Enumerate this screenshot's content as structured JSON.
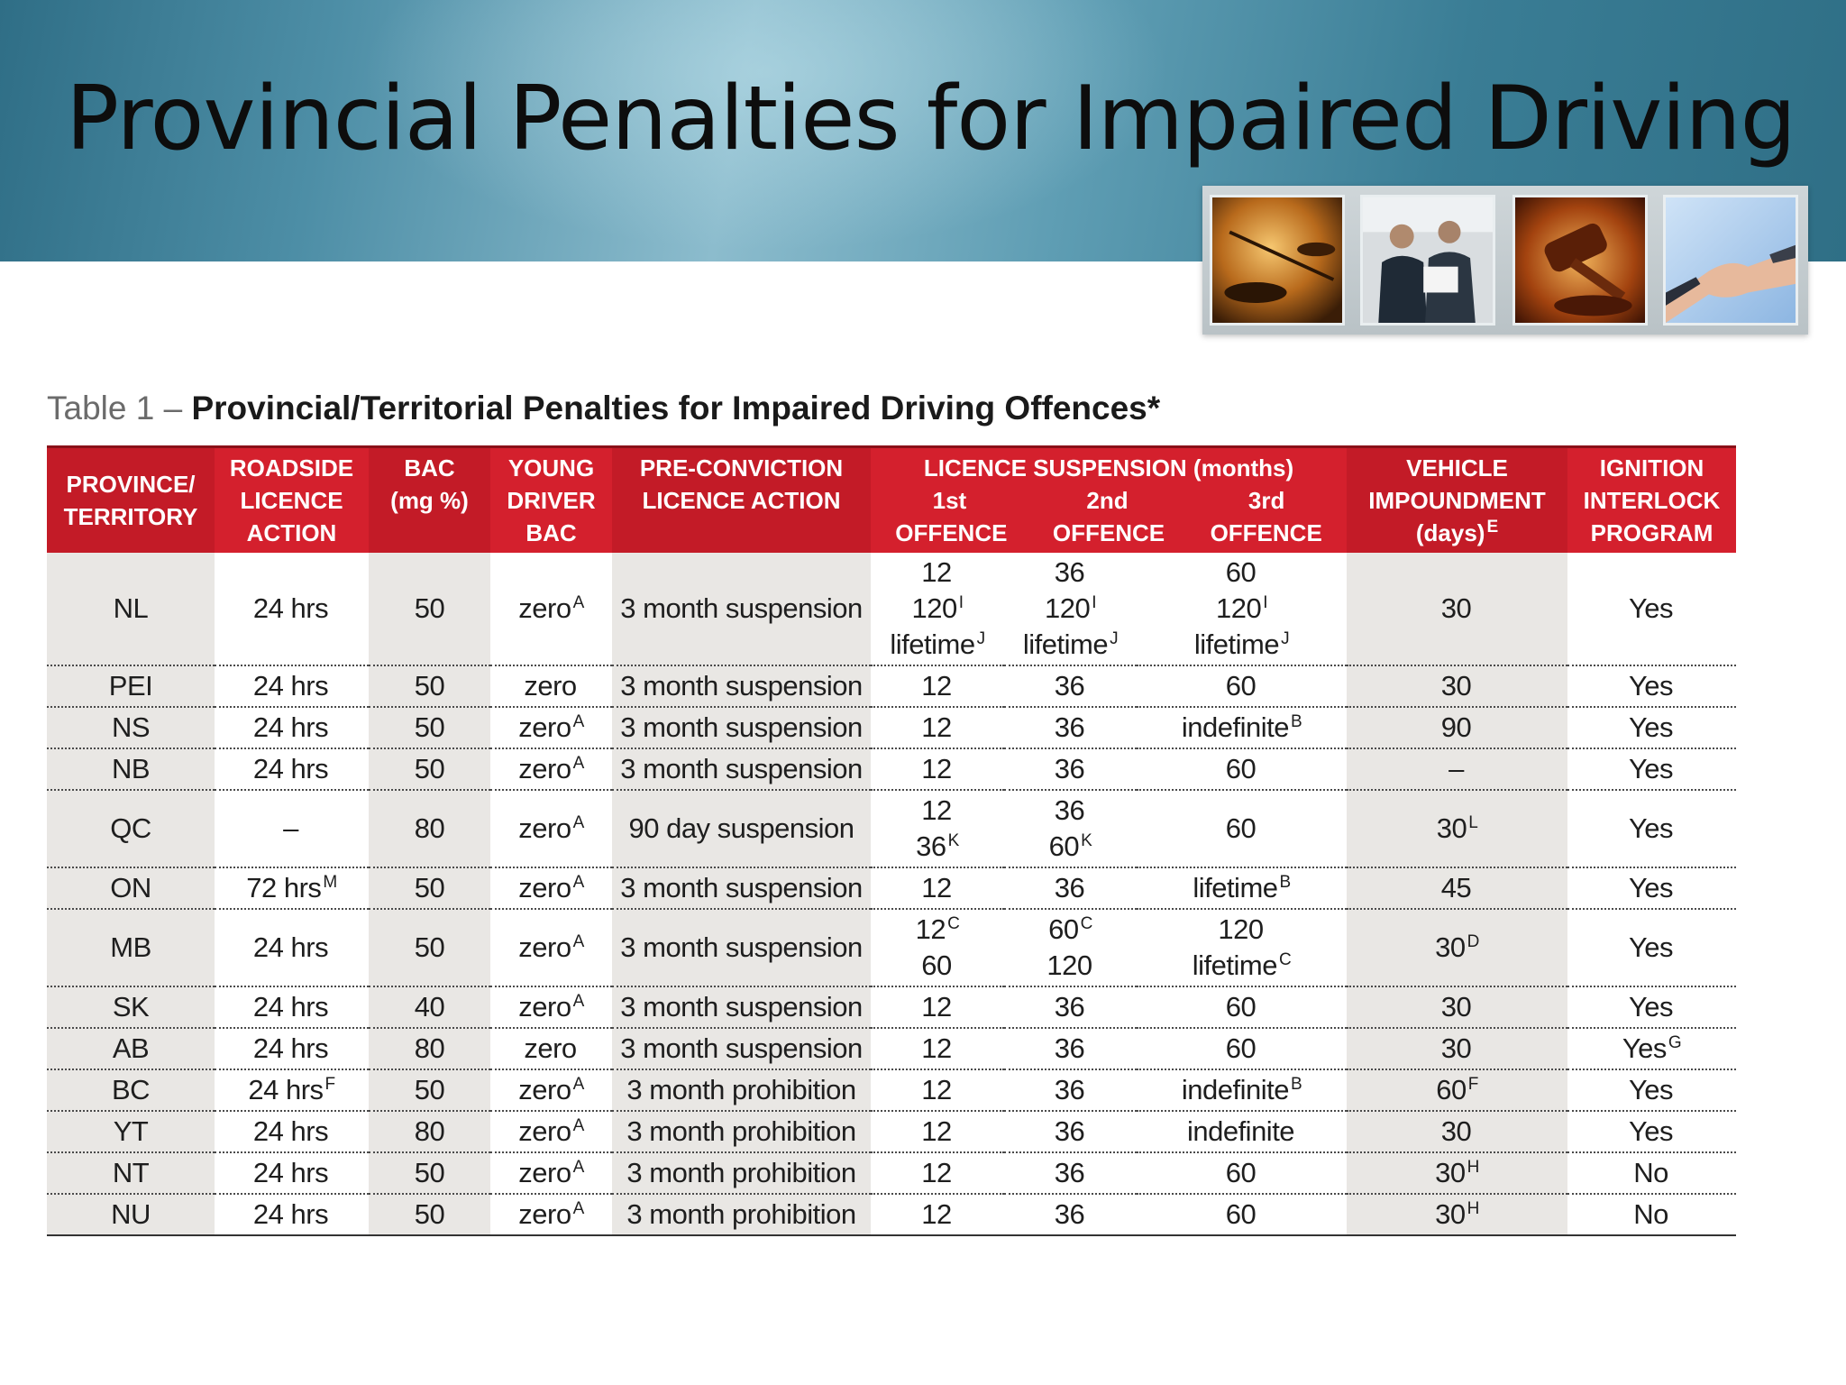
{
  "slide": {
    "title": "Provincial Penalties for Impaired Driving"
  },
  "photos": [
    {
      "icon": "scales-of-justice-image"
    },
    {
      "icon": "business-people-image"
    },
    {
      "icon": "gavel-image"
    },
    {
      "icon": "handshake-image"
    }
  ],
  "caption": {
    "prefix": "Table 1",
    "dash": "–",
    "main": "Provincial/Territorial Penalties for Impaired Driving Offences*"
  },
  "headers": {
    "province": [
      "PROVINCE/",
      "TERRITORY"
    ],
    "roadside": [
      "ROADSIDE",
      "LICENCE",
      "ACTION"
    ],
    "bac": [
      "BAC",
      "(mg %)"
    ],
    "young": [
      "YOUNG",
      "DRIVER",
      "BAC"
    ],
    "preconviction": [
      "PRE-CONVICTION",
      "LICENCE ACTION"
    ],
    "suspension_group": "LICENCE SUSPENSION (months)",
    "offence_numbers": [
      "1st",
      "2nd",
      "3rd"
    ],
    "offence_labels": [
      "OFFENCE",
      "OFFENCE",
      "OFFENCE"
    ],
    "vehicle": [
      "VEHICLE",
      "IMPOUNDMENT",
      "(days)"
    ],
    "vehicle_sup": "E",
    "ignition": [
      "IGNITION",
      "INTERLOCK",
      "PROGRAM"
    ]
  },
  "rows": [
    {
      "province": "NL",
      "roadside": {
        "t": "24 hrs",
        "s": ""
      },
      "bac": "50",
      "young": {
        "t": "zero",
        "s": "A"
      },
      "preconviction": "3 month suspension",
      "first": [
        {
          "t": "12",
          "s": ""
        },
        {
          "t": "120",
          "s": "I"
        },
        {
          "t": "lifetime",
          "s": "J"
        }
      ],
      "second": [
        {
          "t": "36",
          "s": ""
        },
        {
          "t": "120",
          "s": "I"
        },
        {
          "t": "lifetime",
          "s": "J"
        }
      ],
      "third": [
        {
          "t": "60",
          "s": ""
        },
        {
          "t": "120",
          "s": "I"
        },
        {
          "t": "lifetime",
          "s": "J"
        }
      ],
      "vehicle": {
        "t": "30",
        "s": ""
      },
      "ignition": {
        "t": "Yes",
        "s": ""
      }
    },
    {
      "province": "PEI",
      "roadside": {
        "t": "24 hrs",
        "s": ""
      },
      "bac": "50",
      "young": {
        "t": "zero",
        "s": ""
      },
      "preconviction": "3 month suspension",
      "first": [
        {
          "t": "12",
          "s": ""
        }
      ],
      "second": [
        {
          "t": "36",
          "s": ""
        }
      ],
      "third": [
        {
          "t": "60",
          "s": ""
        }
      ],
      "vehicle": {
        "t": "30",
        "s": ""
      },
      "ignition": {
        "t": "Yes",
        "s": ""
      }
    },
    {
      "province": "NS",
      "roadside": {
        "t": "24 hrs",
        "s": ""
      },
      "bac": "50",
      "young": {
        "t": "zero",
        "s": "A"
      },
      "preconviction": "3 month suspension",
      "first": [
        {
          "t": "12",
          "s": ""
        }
      ],
      "second": [
        {
          "t": "36",
          "s": ""
        }
      ],
      "third": [
        {
          "t": "indefinite",
          "s": "B"
        }
      ],
      "vehicle": {
        "t": "90",
        "s": ""
      },
      "ignition": {
        "t": "Yes",
        "s": ""
      }
    },
    {
      "province": "NB",
      "roadside": {
        "t": "24 hrs",
        "s": ""
      },
      "bac": "50",
      "young": {
        "t": "zero",
        "s": "A"
      },
      "preconviction": "3 month suspension",
      "first": [
        {
          "t": "12",
          "s": ""
        }
      ],
      "second": [
        {
          "t": "36",
          "s": ""
        }
      ],
      "third": [
        {
          "t": "60",
          "s": ""
        }
      ],
      "vehicle": {
        "t": "–",
        "s": ""
      },
      "ignition": {
        "t": "Yes",
        "s": ""
      }
    },
    {
      "province": "QC",
      "roadside": {
        "t": "–",
        "s": ""
      },
      "bac": "80",
      "young": {
        "t": "zero",
        "s": "A"
      },
      "preconviction": "90 day suspension",
      "first": [
        {
          "t": "12",
          "s": ""
        },
        {
          "t": "36",
          "s": "K"
        }
      ],
      "second": [
        {
          "t": "36",
          "s": ""
        },
        {
          "t": "60",
          "s": "K"
        }
      ],
      "third": [
        {
          "t": "60",
          "s": ""
        }
      ],
      "vehicle": {
        "t": "30",
        "s": "L"
      },
      "ignition": {
        "t": "Yes",
        "s": ""
      }
    },
    {
      "province": "ON",
      "roadside": {
        "t": "72 hrs",
        "s": "M"
      },
      "bac": "50",
      "young": {
        "t": "zero",
        "s": "A"
      },
      "preconviction": "3 month suspension",
      "first": [
        {
          "t": "12",
          "s": ""
        }
      ],
      "second": [
        {
          "t": "36",
          "s": ""
        }
      ],
      "third": [
        {
          "t": "lifetime",
          "s": "B"
        }
      ],
      "vehicle": {
        "t": "45",
        "s": ""
      },
      "ignition": {
        "t": "Yes",
        "s": ""
      }
    },
    {
      "province": "MB",
      "roadside": {
        "t": "24 hrs",
        "s": ""
      },
      "bac": "50",
      "young": {
        "t": "zero",
        "s": "A"
      },
      "preconviction": "3 month suspension",
      "first": [
        {
          "t": "12",
          "s": "C"
        },
        {
          "t": "60",
          "s": ""
        }
      ],
      "second": [
        {
          "t": "60",
          "s": "C"
        },
        {
          "t": "120",
          "s": ""
        }
      ],
      "third": [
        {
          "t": "120",
          "s": ""
        },
        {
          "t": "lifetime",
          "s": "C"
        }
      ],
      "vehicle": {
        "t": "30",
        "s": "D"
      },
      "ignition": {
        "t": "Yes",
        "s": ""
      }
    },
    {
      "province": "SK",
      "roadside": {
        "t": "24 hrs",
        "s": ""
      },
      "bac": "40",
      "young": {
        "t": "zero",
        "s": "A"
      },
      "preconviction": "3 month suspension",
      "first": [
        {
          "t": "12",
          "s": ""
        }
      ],
      "second": [
        {
          "t": "36",
          "s": ""
        }
      ],
      "third": [
        {
          "t": "60",
          "s": ""
        }
      ],
      "vehicle": {
        "t": "30",
        "s": ""
      },
      "ignition": {
        "t": "Yes",
        "s": ""
      }
    },
    {
      "province": "AB",
      "roadside": {
        "t": "24 hrs",
        "s": ""
      },
      "bac": "80",
      "young": {
        "t": "zero",
        "s": ""
      },
      "preconviction": "3 month suspension",
      "first": [
        {
          "t": "12",
          "s": ""
        }
      ],
      "second": [
        {
          "t": "36",
          "s": ""
        }
      ],
      "third": [
        {
          "t": "60",
          "s": ""
        }
      ],
      "vehicle": {
        "t": "30",
        "s": ""
      },
      "ignition": {
        "t": "Yes",
        "s": "G"
      }
    },
    {
      "province": "BC",
      "roadside": {
        "t": "24 hrs",
        "s": "F"
      },
      "bac": "50",
      "young": {
        "t": "zero",
        "s": "A"
      },
      "preconviction": "3 month prohibition",
      "first": [
        {
          "t": "12",
          "s": ""
        }
      ],
      "second": [
        {
          "t": "36",
          "s": ""
        }
      ],
      "third": [
        {
          "t": "indefinite",
          "s": "B"
        }
      ],
      "vehicle": {
        "t": "60",
        "s": "F"
      },
      "ignition": {
        "t": "Yes",
        "s": ""
      }
    },
    {
      "province": "YT",
      "roadside": {
        "t": "24 hrs",
        "s": ""
      },
      "bac": "80",
      "young": {
        "t": "zero",
        "s": "A"
      },
      "preconviction": "3 month prohibition",
      "first": [
        {
          "t": "12",
          "s": ""
        }
      ],
      "second": [
        {
          "t": "36",
          "s": ""
        }
      ],
      "third": [
        {
          "t": "indefinite",
          "s": ""
        }
      ],
      "vehicle": {
        "t": "30",
        "s": ""
      },
      "ignition": {
        "t": "Yes",
        "s": ""
      }
    },
    {
      "province": "NT",
      "roadside": {
        "t": "24 hrs",
        "s": ""
      },
      "bac": "50",
      "young": {
        "t": "zero",
        "s": "A"
      },
      "preconviction": "3 month prohibition",
      "first": [
        {
          "t": "12",
          "s": ""
        }
      ],
      "second": [
        {
          "t": "36",
          "s": ""
        }
      ],
      "third": [
        {
          "t": "60",
          "s": ""
        }
      ],
      "vehicle": {
        "t": "30",
        "s": "H"
      },
      "ignition": {
        "t": "No",
        "s": ""
      }
    },
    {
      "province": "NU",
      "roadside": {
        "t": "24 hrs",
        "s": ""
      },
      "bac": "50",
      "young": {
        "t": "zero",
        "s": "A"
      },
      "preconviction": "3 month prohibition",
      "first": [
        {
          "t": "12",
          "s": ""
        }
      ],
      "second": [
        {
          "t": "36",
          "s": ""
        }
      ],
      "third": [
        {
          "t": "60",
          "s": ""
        }
      ],
      "vehicle": {
        "t": "30",
        "s": "H"
      },
      "ignition": {
        "t": "No",
        "s": ""
      }
    }
  ]
}
